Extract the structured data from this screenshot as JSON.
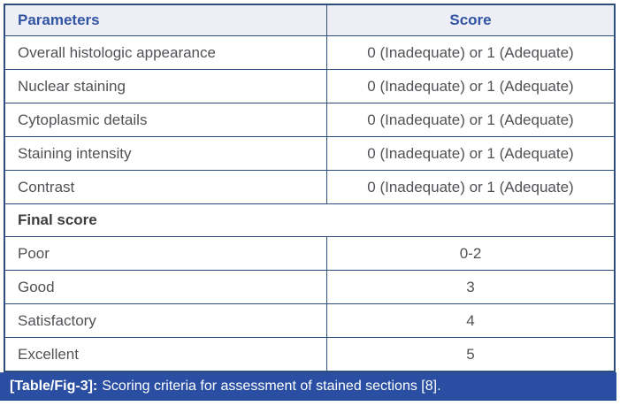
{
  "table": {
    "header": {
      "col1": "Parameters",
      "col2": "Score"
    },
    "rows": [
      {
        "param": "Overall histologic appearance",
        "score": "0 (Inadequate) or 1 (Adequate)"
      },
      {
        "param": "Nuclear staining",
        "score": "0 (Inadequate) or 1 (Adequate)"
      },
      {
        "param": "Cytoplasmic details",
        "score": "0 (Inadequate) or 1 (Adequate)"
      },
      {
        "param": "Staining intensity",
        "score": "0 (Inadequate) or 1 (Adequate)"
      },
      {
        "param": "Contrast",
        "score": "0 (Inadequate) or 1 (Adequate)"
      }
    ],
    "section_header": "Final score",
    "final_rows": [
      {
        "param": "Poor",
        "score": "0-2"
      },
      {
        "param": "Good",
        "score": "3"
      },
      {
        "param": "Satisfactory",
        "score": "4"
      },
      {
        "param": "Excellent",
        "score": "5"
      }
    ]
  },
  "caption": {
    "label": "[Table/Fig-3]:",
    "text": "Scoring criteria for assessment of stained sections [8]."
  },
  "colors": {
    "border": "#2d4e7a",
    "header_bg": "#edeef6",
    "header_text": "#3155a3",
    "body_text": "#515256",
    "caption_bg": "#2a4fa2",
    "caption_text": "#ffffff"
  }
}
